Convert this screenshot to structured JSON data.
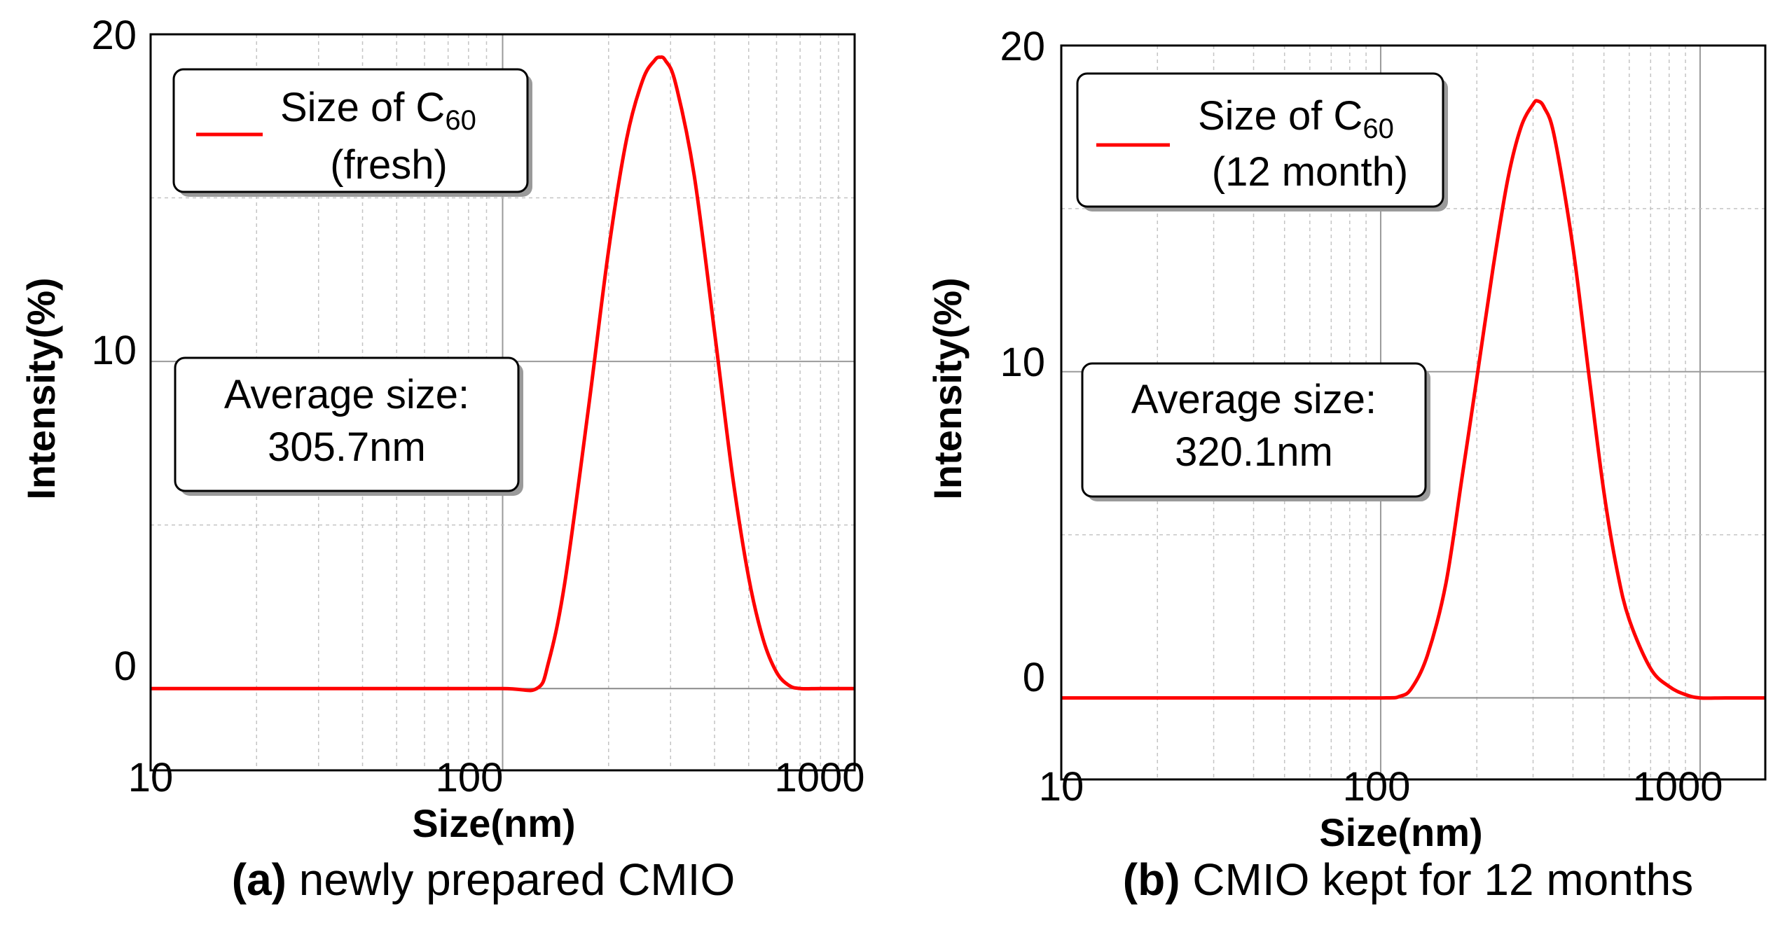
{
  "chart_data": [
    {
      "type": "line",
      "caption_label": "(a)",
      "caption_text": " newly prepared CMIO",
      "xlabel": "Size(nm)",
      "ylabel": "Intensity(%)",
      "xscale": "log",
      "xlim": [
        10,
        1000
      ],
      "ylim": [
        -2.5,
        20
      ],
      "xticks": [
        10,
        100,
        1000
      ],
      "xtick_labels": [
        "10",
        "100",
        "1000"
      ],
      "yticks": [
        0,
        10,
        20
      ],
      "ytick_labels": [
        "0",
        "10",
        "20"
      ],
      "grid": true,
      "legend": {
        "line1": "Size of C",
        "subscript": "60",
        "line2": "(fresh)",
        "position": "top-left"
      },
      "annotation": {
        "line1": "Average size:",
        "line2": "305.7nm",
        "position": "middle-left"
      },
      "series": [
        {
          "name": "Size of C60 (fresh)",
          "color": "#ff0000",
          "x": [
            10,
            50,
            100,
            125,
            135,
            150,
            175,
            200,
            225,
            250,
            270,
            280,
            290,
            310,
            350,
            400,
            450,
            500,
            550,
            600,
            650,
            700,
            800,
            1000
          ],
          "y": [
            0,
            0,
            0,
            0,
            0.8,
            3.2,
            8.5,
            13.4,
            16.8,
            18.6,
            19.2,
            19.3,
            19.2,
            18.5,
            15.7,
            10.9,
            6.5,
            3.4,
            1.5,
            0.5,
            0.1,
            0,
            0,
            0
          ]
        }
      ]
    },
    {
      "type": "line",
      "caption_label": "(b)",
      "caption_text": " CMIO kept for 12 months",
      "xlabel": "Size(nm)",
      "ylabel": "Intensity(%)",
      "xscale": "log",
      "xlim": [
        10,
        1600
      ],
      "ylim": [
        -2.5,
        20
      ],
      "xticks": [
        10,
        100,
        1000
      ],
      "xtick_labels": [
        "10",
        "100",
        "1000"
      ],
      "yticks": [
        0,
        10,
        20
      ],
      "ytick_labels": [
        "0",
        "10",
        "20"
      ],
      "grid": true,
      "legend": {
        "line1": "Size of C",
        "subscript": "60",
        "line2": "(12 month)",
        "position": "top-left"
      },
      "annotation": {
        "line1": "Average size:",
        "line2": "320.1nm",
        "position": "middle-left"
      },
      "series": [
        {
          "name": "Size of C60 (12 month)",
          "color": "#ff0000",
          "x": [
            10,
            50,
            100,
            115,
            125,
            140,
            160,
            180,
            200,
            225,
            250,
            275,
            300,
            310,
            325,
            350,
            400,
            450,
            500,
            550,
            600,
            700,
            800,
            900,
            1000,
            1200,
            1600
          ],
          "y": [
            0,
            0,
            0,
            0.05,
            0.3,
            1.3,
            3.5,
            6.8,
            9.8,
            13.2,
            15.9,
            17.5,
            18.2,
            18.3,
            18.1,
            17.2,
            13.8,
            9.8,
            6.3,
            3.9,
            2.4,
            0.9,
            0.35,
            0.1,
            0,
            0,
            0
          ]
        }
      ]
    }
  ]
}
